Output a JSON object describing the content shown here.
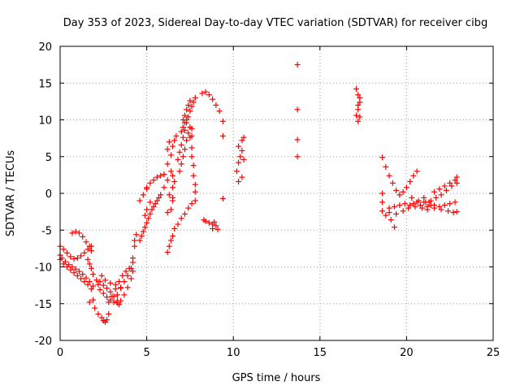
{
  "chart_data": {
    "type": "scatter",
    "title": "Day 353 of 2023, Sidereal Day-to-day VTEC variation (SDTVAR) for receiver cibg",
    "xlabel": "GPS time / hours",
    "ylabel": "SDTVAR / TECUs",
    "xlim": [
      0,
      25
    ],
    "ylim": [
      -20,
      20
    ],
    "xticks": [
      0,
      5,
      10,
      15,
      20,
      25
    ],
    "yticks": [
      -20,
      -15,
      -10,
      -5,
      0,
      5,
      10,
      15,
      20
    ],
    "grid": true,
    "marker": "plus",
    "series": [
      {
        "name": "SDTVAR",
        "color": "#ff0000",
        "points": [
          [
            0.0,
            -7.2
          ],
          [
            0.2,
            -7.6
          ],
          [
            0.4,
            -8.1
          ],
          [
            0.6,
            -8.6
          ],
          [
            0.8,
            -8.9
          ],
          [
            1.0,
            -8.8
          ],
          [
            1.2,
            -8.5
          ],
          [
            1.4,
            -8.1
          ],
          [
            1.6,
            -7.6
          ],
          [
            1.8,
            -7.2
          ],
          [
            0.7,
            -5.4
          ],
          [
            0.9,
            -5.2
          ],
          [
            1.1,
            -5.4
          ],
          [
            1.3,
            -5.9
          ],
          [
            1.5,
            -6.6
          ],
          [
            1.7,
            -7.2
          ],
          [
            1.8,
            -7.8
          ],
          [
            0.0,
            -8.4
          ],
          [
            0.1,
            -8.8
          ],
          [
            0.3,
            -9.3
          ],
          [
            0.5,
            -9.7
          ],
          [
            0.7,
            -10.0
          ],
          [
            0.9,
            -10.3
          ],
          [
            1.1,
            -10.6
          ],
          [
            1.3,
            -11.0
          ],
          [
            1.5,
            -11.5
          ],
          [
            1.7,
            -12.0
          ],
          [
            1.9,
            -12.6
          ],
          [
            0.0,
            -9.0
          ],
          [
            0.2,
            -9.6
          ],
          [
            0.4,
            -10.0
          ],
          [
            0.6,
            -10.4
          ],
          [
            0.8,
            -10.8
          ],
          [
            1.0,
            -11.2
          ],
          [
            1.2,
            -11.6
          ],
          [
            1.4,
            -12.0
          ],
          [
            1.6,
            -12.4
          ],
          [
            1.8,
            -13.0
          ],
          [
            1.9,
            -14.5
          ],
          [
            1.7,
            -14.8
          ],
          [
            1.6,
            -9.0
          ],
          [
            1.8,
            -10.2
          ],
          [
            1.9,
            -11.0
          ],
          [
            1.7,
            -9.6
          ],
          [
            2.1,
            -11.8
          ],
          [
            2.2,
            -12.4
          ],
          [
            2.3,
            -13.1
          ],
          [
            2.5,
            -13.6
          ],
          [
            2.7,
            -14.1
          ],
          [
            2.9,
            -14.5
          ],
          [
            3.1,
            -14.8
          ],
          [
            3.3,
            -14.9
          ],
          [
            3.5,
            -14.6
          ],
          [
            3.7,
            -13.8
          ],
          [
            3.9,
            -12.8
          ],
          [
            4.1,
            -11.6
          ],
          [
            4.2,
            -10.6
          ],
          [
            2.3,
            -12.0
          ],
          [
            2.5,
            -12.5
          ],
          [
            2.7,
            -12.9
          ],
          [
            2.9,
            -13.4
          ],
          [
            3.1,
            -14.0
          ],
          [
            3.3,
            -14.6
          ],
          [
            3.4,
            -15.1
          ],
          [
            2.0,
            -15.6
          ],
          [
            2.2,
            -16.4
          ],
          [
            2.4,
            -16.9
          ],
          [
            2.5,
            -17.3
          ],
          [
            2.6,
            -17.5
          ],
          [
            2.7,
            -17.2
          ],
          [
            2.8,
            -16.4
          ],
          [
            2.8,
            -14.8
          ],
          [
            3.0,
            -14.0
          ],
          [
            3.2,
            -13.0
          ],
          [
            3.4,
            -12.0
          ],
          [
            3.6,
            -11.2
          ],
          [
            3.8,
            -10.6
          ],
          [
            4.0,
            -10.2
          ],
          [
            3.3,
            -13.8
          ],
          [
            3.5,
            -12.9
          ],
          [
            3.7,
            -12.0
          ],
          [
            3.9,
            -11.2
          ],
          [
            4.1,
            -10.2
          ],
          [
            4.2,
            -9.4
          ],
          [
            2.4,
            -11.2
          ],
          [
            2.6,
            -11.8
          ],
          [
            2.9,
            -12.2
          ],
          [
            3.2,
            -12.4
          ],
          [
            3.5,
            -12.8
          ],
          [
            4.2,
            -8.8
          ],
          [
            4.3,
            -7.2
          ],
          [
            4.4,
            -5.6
          ],
          [
            4.3,
            -6.4
          ],
          [
            4.6,
            -6.4
          ],
          [
            4.8,
            -5.2
          ],
          [
            5.0,
            -4.0
          ],
          [
            5.2,
            -2.8
          ],
          [
            5.4,
            -1.8
          ],
          [
            5.6,
            -1.0
          ],
          [
            5.8,
            -0.2
          ],
          [
            6.0,
            0.8
          ],
          [
            6.2,
            1.8
          ],
          [
            4.7,
            -5.8
          ],
          [
            4.9,
            -4.6
          ],
          [
            5.1,
            -3.4
          ],
          [
            5.3,
            -2.2
          ],
          [
            5.5,
            -1.4
          ],
          [
            5.7,
            -0.6
          ],
          [
            5.0,
            0.8
          ],
          [
            5.2,
            1.4
          ],
          [
            5.4,
            1.8
          ],
          [
            5.6,
            2.2
          ],
          [
            5.8,
            2.4
          ],
          [
            6.0,
            2.6
          ],
          [
            4.6,
            -1.0
          ],
          [
            4.8,
            -0.2
          ],
          [
            5.0,
            0.6
          ],
          [
            4.9,
            -3.0
          ],
          [
            5.0,
            -2.2
          ],
          [
            5.2,
            -1.2
          ],
          [
            6.2,
            -8.0
          ],
          [
            6.3,
            -7.2
          ],
          [
            6.4,
            -6.4
          ],
          [
            6.5,
            -5.8
          ],
          [
            6.6,
            -4.8
          ],
          [
            6.8,
            -4.2
          ],
          [
            7.0,
            -3.4
          ],
          [
            7.2,
            -2.8
          ],
          [
            7.4,
            -2.0
          ],
          [
            7.6,
            -1.4
          ],
          [
            7.8,
            -1.0
          ],
          [
            6.2,
            -2.6
          ],
          [
            6.4,
            -2.2
          ],
          [
            6.5,
            -1.0
          ],
          [
            6.3,
            -0.2
          ],
          [
            6.5,
            0.8
          ],
          [
            6.6,
            1.6
          ],
          [
            6.5,
            -0.6
          ],
          [
            6.2,
            4.0
          ],
          [
            6.4,
            5.2
          ],
          [
            6.5,
            6.4
          ],
          [
            6.6,
            7.2
          ],
          [
            6.7,
            7.8
          ],
          [
            6.3,
            7.0
          ],
          [
            6.2,
            6.0
          ],
          [
            6.4,
            3.0
          ],
          [
            6.5,
            2.4
          ],
          [
            6.8,
            4.6
          ],
          [
            6.9,
            5.6
          ],
          [
            7.0,
            6.6
          ],
          [
            7.1,
            7.6
          ],
          [
            7.2,
            8.6
          ],
          [
            7.3,
            9.6
          ],
          [
            7.4,
            10.4
          ],
          [
            7.5,
            11.2
          ],
          [
            7.6,
            11.8
          ],
          [
            7.7,
            12.4
          ],
          [
            7.8,
            13.0
          ],
          [
            6.9,
            3.0
          ],
          [
            7.0,
            4.0
          ],
          [
            7.1,
            5.0
          ],
          [
            7.2,
            6.0
          ],
          [
            7.3,
            7.2
          ],
          [
            7.4,
            8.2
          ],
          [
            7.5,
            9.0
          ],
          [
            7.1,
            10.0
          ],
          [
            7.2,
            10.6
          ],
          [
            7.3,
            11.4
          ],
          [
            7.4,
            12.0
          ],
          [
            7.5,
            12.6
          ],
          [
            7.5,
            7.6
          ],
          [
            7.6,
            6.2
          ],
          [
            7.6,
            5.0
          ],
          [
            7.7,
            3.8
          ],
          [
            7.7,
            2.4
          ],
          [
            7.8,
            1.2
          ],
          [
            7.8,
            0.2
          ],
          [
            7.0,
            8.4
          ],
          [
            7.1,
            9.0
          ],
          [
            7.2,
            9.6
          ],
          [
            7.3,
            10.0
          ],
          [
            7.6,
            7.8
          ],
          [
            7.6,
            8.8
          ],
          [
            8.2,
            13.6
          ],
          [
            8.4,
            13.8
          ],
          [
            8.6,
            13.4
          ],
          [
            8.8,
            12.8
          ],
          [
            9.0,
            12.0
          ],
          [
            9.2,
            11.2
          ],
          [
            9.4,
            9.8
          ],
          [
            9.4,
            7.8
          ],
          [
            9.4,
            -0.7
          ],
          [
            8.3,
            -3.6
          ],
          [
            8.4,
            -3.8
          ],
          [
            8.6,
            -4.0
          ],
          [
            8.8,
            -4.2
          ],
          [
            9.0,
            -4.4
          ],
          [
            8.8,
            -4.8
          ],
          [
            9.1,
            -4.9
          ],
          [
            8.9,
            -3.9
          ],
          [
            10.3,
            1.6
          ],
          [
            10.5,
            2.2
          ],
          [
            10.2,
            3.0
          ],
          [
            10.3,
            4.2
          ],
          [
            10.4,
            5.0
          ],
          [
            10.5,
            5.8
          ],
          [
            10.3,
            6.4
          ],
          [
            10.5,
            7.2
          ],
          [
            10.6,
            7.6
          ],
          [
            10.6,
            4.6
          ],
          [
            13.7,
            17.5
          ],
          [
            13.7,
            11.4
          ],
          [
            13.7,
            7.3
          ],
          [
            13.7,
            5.0
          ],
          [
            17.1,
            14.2
          ],
          [
            17.2,
            13.4
          ],
          [
            17.3,
            12.4
          ],
          [
            17.2,
            11.4
          ],
          [
            17.3,
            10.4
          ],
          [
            17.2,
            9.8
          ],
          [
            17.1,
            10.6
          ],
          [
            17.2,
            12.0
          ],
          [
            17.3,
            13.0
          ],
          [
            18.6,
            4.9
          ],
          [
            18.8,
            3.6
          ],
          [
            19.0,
            2.4
          ],
          [
            19.2,
            1.4
          ],
          [
            19.4,
            0.4
          ],
          [
            19.6,
            -0.2
          ],
          [
            19.8,
            0.2
          ],
          [
            20.0,
            0.8
          ],
          [
            20.2,
            1.6
          ],
          [
            20.4,
            2.4
          ],
          [
            20.6,
            3.0
          ],
          [
            18.6,
            0.0
          ],
          [
            18.6,
            -1.2
          ],
          [
            18.6,
            -2.4
          ],
          [
            18.8,
            -3.0
          ],
          [
            19.0,
            -2.6
          ],
          [
            19.1,
            -3.6
          ],
          [
            19.3,
            -4.6
          ],
          [
            19.4,
            -2.8
          ],
          [
            19.0,
            -2.0
          ],
          [
            19.3,
            -1.8
          ],
          [
            19.6,
            -1.6
          ],
          [
            19.9,
            -1.4
          ],
          [
            20.2,
            -1.6
          ],
          [
            20.5,
            -1.8
          ],
          [
            20.8,
            -1.6
          ],
          [
            21.1,
            -1.2
          ],
          [
            21.4,
            -1.0
          ],
          [
            21.7,
            -0.6
          ],
          [
            22.0,
            -0.2
          ],
          [
            22.3,
            0.4
          ],
          [
            22.6,
            1.0
          ],
          [
            22.9,
            1.4
          ],
          [
            19.8,
            -2.4
          ],
          [
            20.1,
            -2.0
          ],
          [
            20.4,
            -1.4
          ],
          [
            20.7,
            -1.0
          ],
          [
            21.0,
            -0.6
          ],
          [
            21.3,
            -1.2
          ],
          [
            21.6,
            -1.6
          ],
          [
            21.9,
            -1.8
          ],
          [
            22.2,
            -1.6
          ],
          [
            22.5,
            -1.4
          ],
          [
            22.8,
            -1.2
          ],
          [
            21.2,
            -1.8
          ],
          [
            21.6,
            -2.0
          ],
          [
            22.0,
            -2.2
          ],
          [
            22.4,
            -2.4
          ],
          [
            22.7,
            -2.6
          ],
          [
            22.9,
            -2.5
          ],
          [
            21.6,
            0.2
          ],
          [
            21.9,
            0.6
          ],
          [
            22.2,
            1.0
          ],
          [
            22.5,
            1.4
          ],
          [
            22.8,
            1.8
          ],
          [
            22.9,
            2.2
          ],
          [
            20.3,
            -0.6
          ],
          [
            20.6,
            -1.2
          ],
          [
            20.9,
            -2.0
          ],
          [
            21.2,
            -2.2
          ],
          [
            21.0,
            -1.2
          ],
          [
            21.4,
            -1.6
          ]
        ]
      }
    ]
  }
}
